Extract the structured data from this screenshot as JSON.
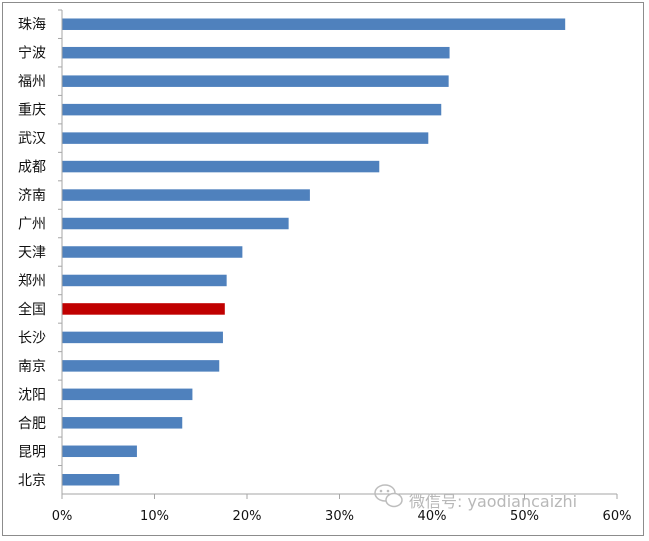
{
  "chart_data": {
    "type": "bar",
    "orientation": "horizontal",
    "categories": [
      "珠海",
      "宁波",
      "福州",
      "重庆",
      "武汉",
      "成都",
      "济南",
      "广州",
      "天津",
      "郑州",
      "全国",
      "长沙",
      "南京",
      "沈阳",
      "合肥",
      "昆明",
      "北京"
    ],
    "values": [
      0.544,
      0.419,
      0.418,
      0.41,
      0.396,
      0.343,
      0.268,
      0.245,
      0.195,
      0.178,
      0.176,
      0.174,
      0.17,
      0.141,
      0.13,
      0.081,
      0.062
    ],
    "highlight_category": "全国",
    "colors": {
      "bar": "#4f81bd",
      "highlight": "#c00000",
      "axis": "#a6a6a6",
      "frame": "#8c8c8c"
    },
    "xlim": [
      0,
      0.6
    ],
    "xticks": [
      0,
      0.1,
      0.2,
      0.3,
      0.4,
      0.5,
      0.6
    ],
    "xtick_labels": [
      "0%",
      "10%",
      "20%",
      "30%",
      "40%",
      "50%",
      "60%"
    ],
    "grid": false,
    "legend": "none",
    "title": "",
    "xlabel": "",
    "ylabel": ""
  },
  "watermark": {
    "icon": "wechat-icon",
    "text": "微信号: yaodiancaizhi"
  }
}
